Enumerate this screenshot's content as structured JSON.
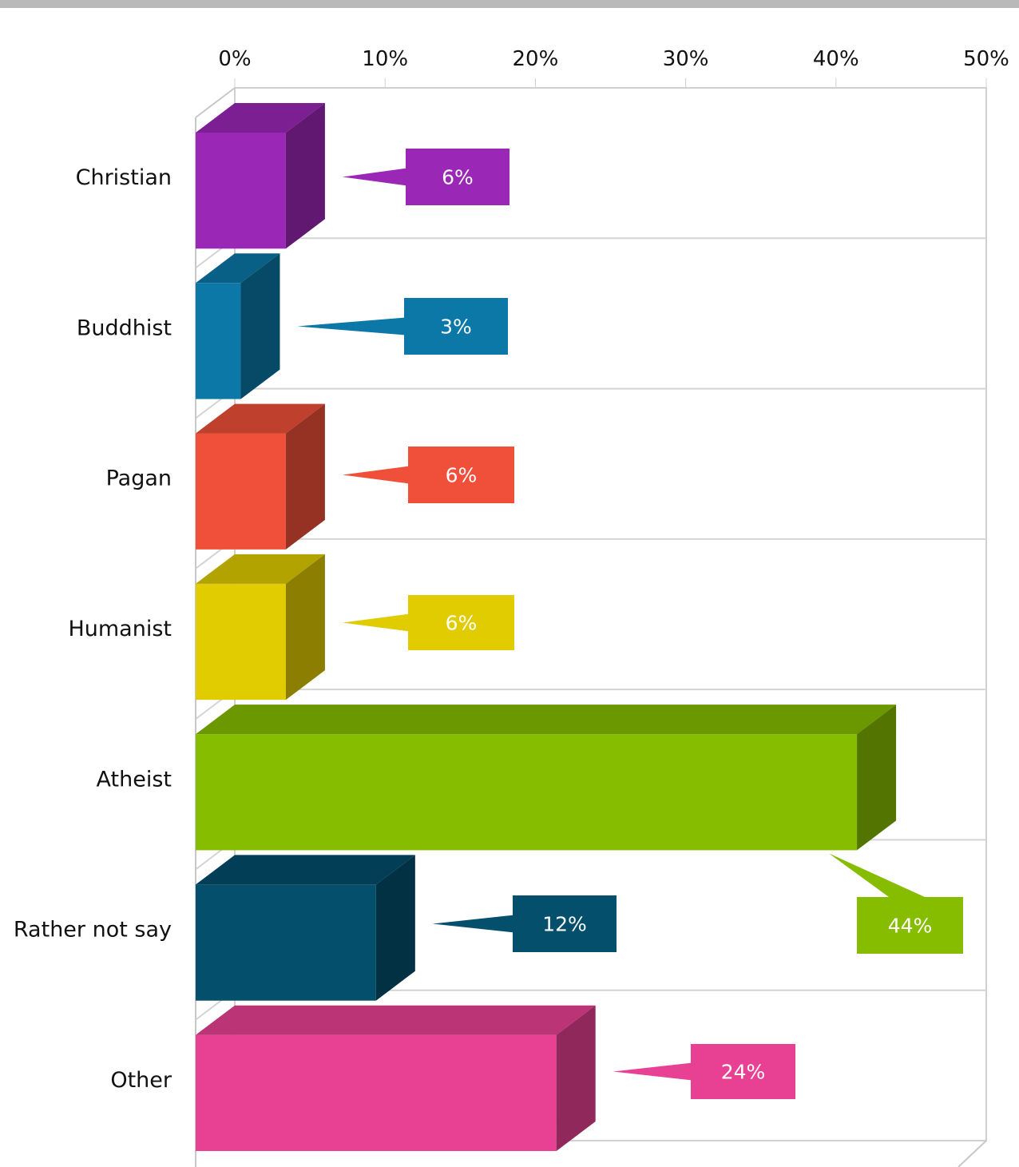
{
  "chart_data": {
    "type": "bar",
    "orientation": "horizontal",
    "style": "3d",
    "categories": [
      "Christian",
      "Buddhist",
      "Pagan",
      "Humanist",
      "Atheist",
      "Rather not say",
      "Other"
    ],
    "values": [
      6,
      3,
      6,
      6,
      44,
      12,
      24
    ],
    "value_labels": [
      "6%",
      "3%",
      "6%",
      "6%",
      "44%",
      "12%",
      "24%"
    ],
    "colors": [
      "#9b27b6",
      "#0b78a8",
      "#f0503a",
      "#e0cc00",
      "#86bd00",
      "#034f6c",
      "#e84194"
    ],
    "x_ticks": [
      "0%",
      "10%",
      "20%",
      "30%",
      "40%",
      "50%"
    ],
    "xlim": [
      0,
      50
    ],
    "x_axis_position": "top",
    "grid": true,
    "legend": "none"
  }
}
